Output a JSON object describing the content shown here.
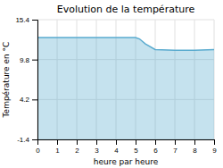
{
  "chart_data": {
    "type": "area",
    "title": "Evolution de la température",
    "xlabel": "heure par heure",
    "ylabel": "Température en °C",
    "x": [
      0,
      1,
      2,
      3,
      4,
      5,
      5.2,
      5.5,
      6,
      7,
      8,
      9
    ],
    "values": [
      12.9,
      12.9,
      12.9,
      12.9,
      12.9,
      12.9,
      12.7,
      12.0,
      11.2,
      11.1,
      11.1,
      11.2
    ],
    "color": "#5aabcf",
    "xlim": [
      0,
      9
    ],
    "xticks": [
      0,
      1,
      2,
      3,
      4,
      5,
      6,
      7,
      8,
      9
    ],
    "ylim": [
      -1.4,
      15.4
    ],
    "yticks": [
      -1.4,
      4.2,
      9.8,
      15.4
    ],
    "grid": true
  }
}
